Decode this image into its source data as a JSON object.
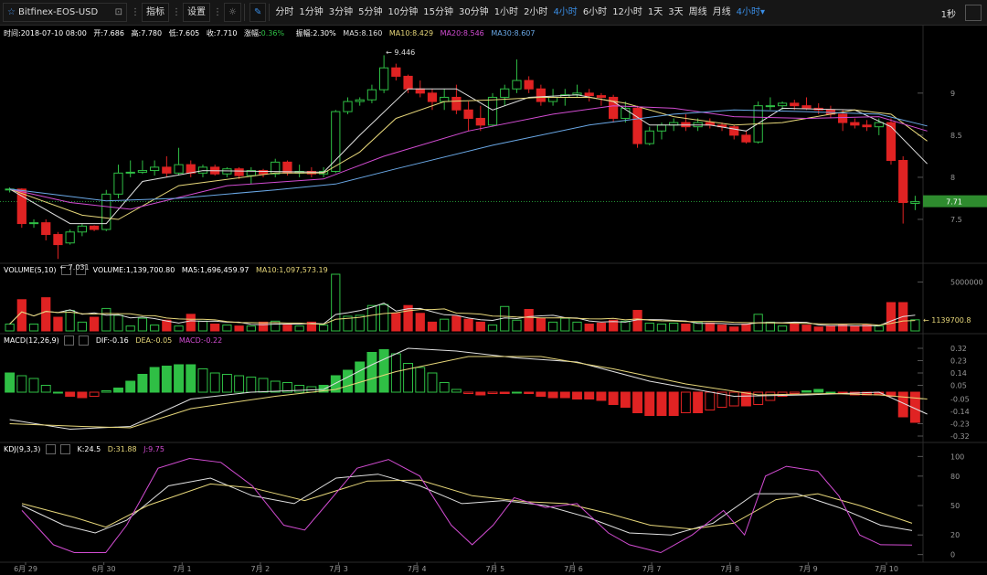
{
  "toolbar": {
    "symbol": "Bitfinex-EOS-USD",
    "indicators_label": "指标",
    "settings_label": "设置",
    "timeframes": [
      "分时",
      "1分钟",
      "3分钟",
      "5分钟",
      "10分钟",
      "15分钟",
      "30分钟",
      "1小时",
      "2小时",
      "4小时",
      "6小时",
      "12小时",
      "1天",
      "3天",
      "周线",
      "月线"
    ],
    "active_timeframe": "4小时",
    "timeframe_dropdown": "4小时",
    "rate": "1秒"
  },
  "info": {
    "time": "时间:2018-07-10 08:00",
    "open": "开:7.686",
    "high": "高:7.780",
    "low": "低:7.605",
    "close": "收:7.710",
    "change": "涨幅:0.36%",
    "amplitude": "振幅:2.30%",
    "ma5": "MA5:8.160",
    "ma10": "MA10:8.429",
    "ma20": "MA20:8.546",
    "ma30": "MA30:8.607"
  },
  "volume_header": {
    "title": "VOLUME(5,10)",
    "volume": "VOLUME:1,139,700.80",
    "ma5": "MA5:1,696,459.97",
    "ma10": "MA10:1,097,573.19"
  },
  "macd_header": {
    "title": "MACD(12,26,9)",
    "dif": "DIF:-0.16",
    "dea": "DEA:-0.05",
    "macd": "MACD:-0.22"
  },
  "kdj_header": {
    "title": "KDJ(9,3,3)",
    "k": "K:24.5",
    "d": "D:31.88",
    "j": "J:9.75"
  },
  "colors": {
    "up": "#2fbf45",
    "down": "#e02323",
    "ma5": "#e0e0e0",
    "ma10": "#e7d77a",
    "ma20": "#d24cd2",
    "ma30": "#6aa8e6"
  },
  "chart_data": {
    "type": "candlestick",
    "x_labels": [
      "6月 29",
      "6月 30",
      "7月 1",
      "7月 2",
      "7月 3",
      "7月 4",
      "7月 5",
      "7月 6",
      "7月 7",
      "7月 8",
      "7月 9",
      "7月 10"
    ],
    "price_axis": {
      "ticks": [
        "9",
        "8.5",
        "8",
        "7.5"
      ],
      "range": [
        7.0,
        9.65
      ]
    },
    "last_price": "7.71",
    "last_price_value": 7.71,
    "high_marker": "9.446",
    "high_value": 9.446,
    "low_marker": "7.031",
    "low_value": 7.031,
    "candles": [
      [
        7.85,
        7.88,
        7.82,
        7.86
      ],
      [
        7.86,
        7.87,
        7.4,
        7.45
      ],
      [
        7.45,
        7.5,
        7.4,
        7.46
      ],
      [
        7.46,
        7.5,
        7.25,
        7.32
      ],
      [
        7.32,
        7.35,
        7.03,
        7.2
      ],
      [
        7.22,
        7.38,
        7.2,
        7.35
      ],
      [
        7.35,
        7.45,
        7.3,
        7.42
      ],
      [
        7.42,
        7.43,
        7.36,
        7.38
      ],
      [
        7.38,
        7.85,
        7.36,
        7.8
      ],
      [
        7.8,
        8.15,
        7.75,
        8.05
      ],
      [
        8.05,
        8.2,
        8.0,
        8.06
      ],
      [
        8.06,
        8.2,
        8.04,
        8.08
      ],
      [
        8.08,
        8.2,
        8.02,
        8.12
      ],
      [
        8.12,
        8.25,
        8.0,
        8.05
      ],
      [
        8.05,
        8.35,
        8.02,
        8.15
      ],
      [
        8.15,
        8.2,
        8.0,
        8.05
      ],
      [
        8.05,
        8.15,
        8.0,
        8.12
      ],
      [
        8.12,
        8.15,
        8.02,
        8.04
      ],
      [
        8.04,
        8.12,
        8.0,
        8.1
      ],
      [
        8.1,
        8.12,
        7.98,
        8.02
      ],
      [
        8.02,
        8.12,
        7.92,
        8.08
      ],
      [
        8.08,
        8.1,
        8.0,
        8.04
      ],
      [
        8.04,
        8.22,
        8.0,
        8.18
      ],
      [
        8.18,
        8.2,
        8.02,
        8.05
      ],
      [
        8.05,
        8.15,
        8.0,
        8.07
      ],
      [
        8.07,
        8.12,
        8.0,
        8.04
      ],
      [
        8.04,
        8.12,
        8.0,
        8.07
      ],
      [
        8.07,
        8.8,
        8.05,
        8.78
      ],
      [
        8.78,
        8.95,
        8.75,
        8.9
      ],
      [
        8.9,
        8.95,
        8.85,
        8.92
      ],
      [
        8.92,
        9.1,
        8.88,
        9.04
      ],
      [
        9.04,
        9.45,
        9.0,
        9.3
      ],
      [
        9.3,
        9.35,
        9.15,
        9.2
      ],
      [
        9.2,
        9.22,
        9.0,
        9.05
      ],
      [
        9.05,
        9.15,
        8.95,
        9.0
      ],
      [
        9.0,
        9.05,
        8.8,
        8.9
      ],
      [
        8.9,
        9.05,
        8.8,
        8.95
      ],
      [
        8.95,
        9.1,
        8.75,
        8.8
      ],
      [
        8.8,
        8.9,
        8.55,
        8.7
      ],
      [
        8.7,
        8.85,
        8.55,
        8.62
      ],
      [
        8.62,
        9.0,
        8.6,
        8.95
      ],
      [
        8.95,
        9.1,
        8.85,
        9.05
      ],
      [
        9.05,
        9.4,
        9.0,
        9.15
      ],
      [
        9.15,
        9.2,
        9.0,
        9.05
      ],
      [
        9.05,
        9.1,
        8.85,
        8.9
      ],
      [
        8.9,
        9.05,
        8.85,
        8.95
      ],
      [
        8.95,
        9.05,
        8.85,
        8.98
      ],
      [
        8.98,
        9.1,
        8.95,
        9.0
      ],
      [
        9.0,
        9.05,
        8.9,
        8.97
      ],
      [
        8.97,
        9.0,
        8.85,
        8.95
      ],
      [
        8.95,
        8.98,
        8.65,
        8.7
      ],
      [
        8.7,
        8.9,
        8.65,
        8.82
      ],
      [
        8.82,
        8.85,
        8.35,
        8.4
      ],
      [
        8.4,
        8.6,
        8.38,
        8.55
      ],
      [
        8.55,
        8.65,
        8.45,
        8.62
      ],
      [
        8.62,
        8.7,
        8.55,
        8.65
      ],
      [
        8.65,
        8.75,
        8.55,
        8.6
      ],
      [
        8.6,
        8.7,
        8.55,
        8.65
      ],
      [
        8.65,
        8.7,
        8.58,
        8.62
      ],
      [
        8.62,
        8.65,
        8.55,
        8.6
      ],
      [
        8.6,
        8.62,
        8.45,
        8.5
      ],
      [
        8.5,
        8.55,
        8.4,
        8.42
      ],
      [
        8.42,
        8.9,
        8.4,
        8.85
      ],
      [
        8.85,
        8.95,
        8.8,
        8.85
      ],
      [
        8.85,
        8.9,
        8.8,
        8.88
      ],
      [
        8.88,
        8.92,
        8.8,
        8.85
      ],
      [
        8.85,
        8.95,
        8.8,
        8.82
      ],
      [
        8.82,
        8.88,
        8.75,
        8.8
      ],
      [
        8.8,
        8.85,
        8.7,
        8.75
      ],
      [
        8.75,
        8.8,
        8.55,
        8.65
      ],
      [
        8.65,
        8.7,
        8.58,
        8.62
      ],
      [
        8.62,
        8.68,
        8.55,
        8.6
      ],
      [
        8.6,
        8.7,
        8.5,
        8.65
      ],
      [
        8.65,
        8.7,
        8.15,
        8.2
      ],
      [
        8.2,
        8.25,
        7.45,
        7.7
      ],
      [
        7.69,
        7.78,
        7.61,
        7.71
      ]
    ],
    "ma_lines": {
      "MA5": [
        [
          0,
          7.86
        ],
        [
          5,
          7.45
        ],
        [
          8,
          7.45
        ],
        [
          11,
          7.95
        ],
        [
          16,
          8.08
        ],
        [
          26,
          8.06
        ],
        [
          29,
          8.5
        ],
        [
          33,
          9.05
        ],
        [
          37,
          9.05
        ],
        [
          40,
          8.8
        ],
        [
          43,
          8.95
        ],
        [
          47,
          8.98
        ],
        [
          50,
          8.9
        ],
        [
          53,
          8.62
        ],
        [
          58,
          8.62
        ],
        [
          61,
          8.55
        ],
        [
          64,
          8.82
        ],
        [
          70,
          8.8
        ],
        [
          73,
          8.6
        ],
        [
          76,
          8.16
        ]
      ],
      "MA10": [
        [
          0,
          7.86
        ],
        [
          6,
          7.55
        ],
        [
          9,
          7.5
        ],
        [
          14,
          7.9
        ],
        [
          22,
          8.05
        ],
        [
          26,
          8.05
        ],
        [
          29,
          8.3
        ],
        [
          32,
          8.7
        ],
        [
          36,
          8.9
        ],
        [
          40,
          8.92
        ],
        [
          44,
          8.95
        ],
        [
          48,
          8.95
        ],
        [
          51,
          8.88
        ],
        [
          55,
          8.72
        ],
        [
          60,
          8.62
        ],
        [
          64,
          8.65
        ],
        [
          70,
          8.8
        ],
        [
          73,
          8.75
        ],
        [
          76,
          8.43
        ]
      ],
      "MA20": [
        [
          0,
          7.86
        ],
        [
          5,
          7.7
        ],
        [
          10,
          7.62
        ],
        [
          18,
          7.9
        ],
        [
          26,
          7.98
        ],
        [
          31,
          8.25
        ],
        [
          38,
          8.55
        ],
        [
          45,
          8.75
        ],
        [
          50,
          8.85
        ],
        [
          55,
          8.82
        ],
        [
          60,
          8.72
        ],
        [
          66,
          8.7
        ],
        [
          72,
          8.72
        ],
        [
          76,
          8.55
        ]
      ],
      "MA30": [
        [
          0,
          7.86
        ],
        [
          8,
          7.72
        ],
        [
          14,
          7.75
        ],
        [
          22,
          7.85
        ],
        [
          27,
          7.92
        ],
        [
          32,
          8.1
        ],
        [
          40,
          8.38
        ],
        [
          48,
          8.62
        ],
        [
          55,
          8.75
        ],
        [
          60,
          8.8
        ],
        [
          66,
          8.78
        ],
        [
          72,
          8.75
        ],
        [
          76,
          8.61
        ]
      ]
    },
    "volume_axis": {
      "tick": "5000000",
      "tick_value": 5000000,
      "range": [
        0,
        5800000
      ]
    },
    "volume_marker": "1139700.8",
    "volume": [
      700000,
      3200000,
      700000,
      3400000,
      1400000,
      2100000,
      900000,
      1400000,
      2300000,
      1600000,
      500000,
      1300000,
      600000,
      1100000,
      500000,
      1700000,
      1000000,
      700000,
      600000,
      500000,
      500000,
      900000,
      1000000,
      600000,
      500000,
      900000,
      600000,
      5800000,
      1500000,
      1600000,
      2600000,
      2700000,
      1800000,
      2600000,
      1800000,
      900000,
      1200000,
      1500000,
      1200000,
      900000,
      600000,
      2500000,
      1100000,
      2200000,
      1300000,
      900000,
      1300000,
      900000,
      700000,
      800000,
      1100000,
      1000000,
      2100000,
      800000,
      700000,
      800000,
      700000,
      900000,
      800000,
      600000,
      400000,
      700000,
      1700000,
      900000,
      500000,
      700000,
      600000,
      400000,
      500000,
      600000,
      500000,
      600000,
      500000,
      2900000,
      2900000,
      1140000
    ],
    "macd_axis": {
      "ticks": [
        "0.32",
        "0.23",
        "0.14",
        "0.05",
        "-0.05",
        "-0.14",
        "-0.23",
        "-0.32"
      ],
      "range": [
        -0.34,
        0.34
      ]
    },
    "macd_hist": [
      0.14,
      0.12,
      0.1,
      0.05,
      0.0,
      -0.03,
      -0.04,
      -0.03,
      0.01,
      0.03,
      0.08,
      0.13,
      0.18,
      0.19,
      0.2,
      0.2,
      0.17,
      0.14,
      0.13,
      0.12,
      0.11,
      0.1,
      0.08,
      0.07,
      0.05,
      0.04,
      0.05,
      0.12,
      0.16,
      0.22,
      0.29,
      0.31,
      0.28,
      0.21,
      0.18,
      0.14,
      0.07,
      0.02,
      -0.01,
      -0.02,
      -0.01,
      -0.01,
      0.0,
      -0.01,
      -0.03,
      -0.04,
      -0.04,
      -0.05,
      -0.05,
      -0.06,
      -0.09,
      -0.11,
      -0.15,
      -0.17,
      -0.17,
      -0.17,
      -0.15,
      -0.15,
      -0.13,
      -0.11,
      -0.1,
      -0.1,
      -0.09,
      -0.06,
      -0.03,
      -0.01,
      0.01,
      0.02,
      0.0,
      -0.01,
      -0.02,
      -0.02,
      -0.02,
      -0.03,
      -0.18,
      -0.22
    ],
    "dif": [
      [
        0,
        -0.2
      ],
      [
        5,
        -0.27
      ],
      [
        10,
        -0.25
      ],
      [
        15,
        -0.05
      ],
      [
        20,
        0.0
      ],
      [
        26,
        0.02
      ],
      [
        30,
        0.2
      ],
      [
        33,
        0.32
      ],
      [
        37,
        0.3
      ],
      [
        42,
        0.25
      ],
      [
        47,
        0.22
      ],
      [
        53,
        0.08
      ],
      [
        60,
        -0.03
      ],
      [
        66,
        -0.02
      ],
      [
        72,
        0.0
      ],
      [
        76,
        -0.16
      ]
    ],
    "dea": [
      [
        0,
        -0.23
      ],
      [
        6,
        -0.25
      ],
      [
        10,
        -0.26
      ],
      [
        15,
        -0.12
      ],
      [
        22,
        -0.03
      ],
      [
        27,
        0.02
      ],
      [
        32,
        0.15
      ],
      [
        38,
        0.26
      ],
      [
        44,
        0.26
      ],
      [
        50,
        0.17
      ],
      [
        56,
        0.06
      ],
      [
        62,
        -0.02
      ],
      [
        68,
        -0.01
      ],
      [
        72,
        -0.02
      ],
      [
        76,
        -0.05
      ]
    ],
    "kdj_axis": {
      "ticks": [
        "100",
        "80",
        "50",
        "20",
        "0"
      ],
      "range": [
        -5,
        105
      ]
    },
    "kdj_k": [
      [
        0,
        50
      ],
      [
        4,
        30
      ],
      [
        7,
        22
      ],
      [
        10,
        35
      ],
      [
        14,
        70
      ],
      [
        18,
        78
      ],
      [
        22,
        60
      ],
      [
        26,
        52
      ],
      [
        30,
        78
      ],
      [
        34,
        82
      ],
      [
        38,
        70
      ],
      [
        42,
        52
      ],
      [
        46,
        55
      ],
      [
        50,
        50
      ],
      [
        54,
        38
      ],
      [
        58,
        22
      ],
      [
        62,
        20
      ],
      [
        66,
        32
      ],
      [
        70,
        62
      ],
      [
        74,
        62
      ],
      [
        78,
        48
      ],
      [
        82,
        30
      ],
      [
        85,
        24.5
      ]
    ],
    "kdj_d": [
      [
        0,
        52
      ],
      [
        5,
        38
      ],
      [
        8,
        28
      ],
      [
        12,
        50
      ],
      [
        18,
        72
      ],
      [
        22,
        68
      ],
      [
        27,
        55
      ],
      [
        33,
        75
      ],
      [
        38,
        76
      ],
      [
        43,
        60
      ],
      [
        48,
        54
      ],
      [
        52,
        52
      ],
      [
        56,
        42
      ],
      [
        60,
        30
      ],
      [
        64,
        26
      ],
      [
        68,
        32
      ],
      [
        72,
        56
      ],
      [
        76,
        62
      ],
      [
        80,
        50
      ],
      [
        85,
        31.88
      ]
    ],
    "kdj_j": [
      [
        0,
        45
      ],
      [
        3,
        10
      ],
      [
        5,
        2
      ],
      [
        8,
        2
      ],
      [
        10,
        30
      ],
      [
        13,
        88
      ],
      [
        16,
        98
      ],
      [
        19,
        94
      ],
      [
        22,
        70
      ],
      [
        25,
        30
      ],
      [
        27,
        25
      ],
      [
        29,
        50
      ],
      [
        32,
        88
      ],
      [
        35,
        97
      ],
      [
        38,
        80
      ],
      [
        41,
        30
      ],
      [
        43,
        10
      ],
      [
        45,
        30
      ],
      [
        47,
        58
      ],
      [
        50,
        48
      ],
      [
        53,
        52
      ],
      [
        56,
        22
      ],
      [
        58,
        10
      ],
      [
        61,
        2
      ],
      [
        64,
        20
      ],
      [
        67,
        45
      ],
      [
        69,
        20
      ],
      [
        71,
        80
      ],
      [
        73,
        90
      ],
      [
        76,
        85
      ],
      [
        78,
        60
      ],
      [
        80,
        20
      ],
      [
        82,
        10
      ],
      [
        85,
        9.75
      ]
    ]
  }
}
